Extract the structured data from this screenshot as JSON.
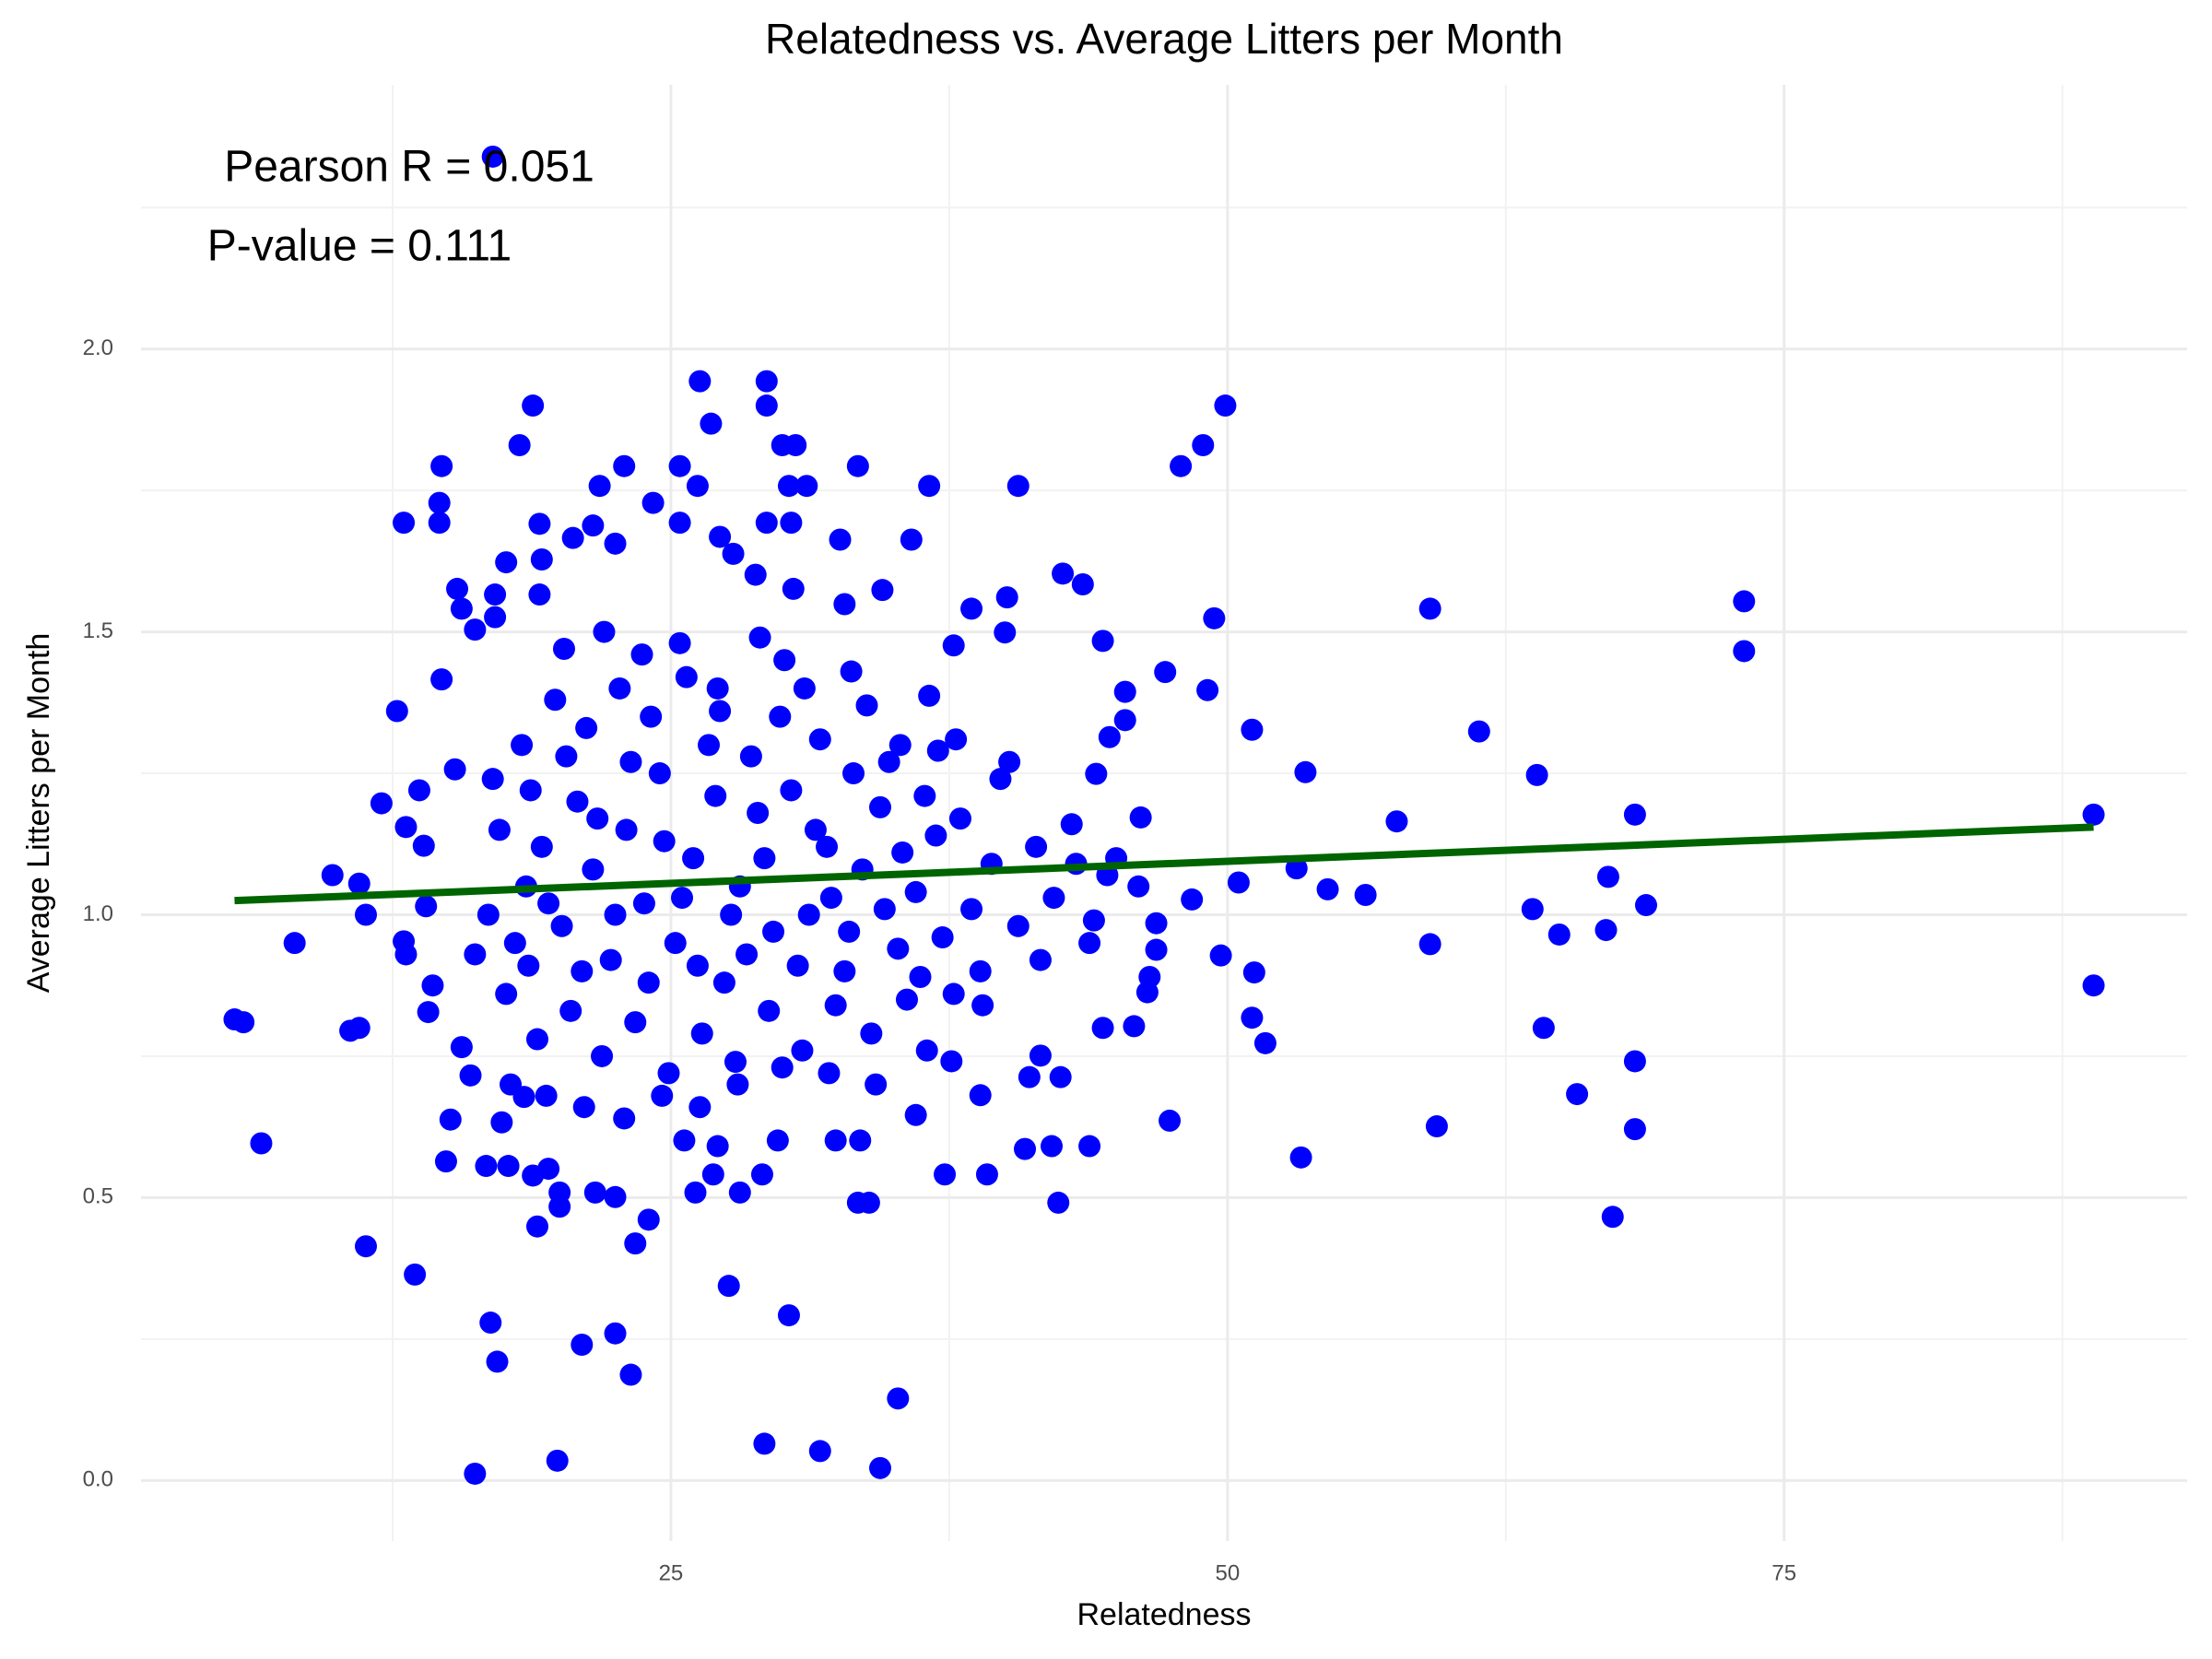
{
  "chart_data": {
    "type": "scatter",
    "title": "Relatedness vs. Average Litters per Month",
    "xlabel": "Relatedness",
    "ylabel": "Average Litters per Month",
    "annotations": [
      "Pearson R = 0.051",
      "P-value = 0.111"
    ],
    "color": "#0000ff",
    "x": [
      17.0,
      5.4,
      5.8,
      6.6,
      8.1,
      9.8,
      10.6,
      11.0,
      11.0,
      11.3,
      11.3,
      12.0,
      12.7,
      13.0,
      13.5,
      13.7,
      14.6,
      14.6,
      14.7,
      14.7,
      15.1,
      14.9,
      16.2,
      16.9,
      17.2,
      18.2,
      18.8,
      19.9,
      19.0,
      21.0,
      22.5,
      23.2,
      23.4,
      24.0,
      26.3,
      29.3,
      26.8,
      29.3,
      27.6,
      29.2,
      30.3,
      31.7,
      34.4,
      35.2,
      33.4,
      36.6,
      40.6,
      42.6,
      43.5,
      44.4,
      47.2,
      47.9,
      48.9,
      49.9,
      49.4,
      49.1,
      51.1,
      46.1,
      50.5,
      49.7,
      51.2,
      51.1,
      51.7,
      47.4,
      53.1,
      53.5,
      54.5,
      56.2,
      53.3,
      57.6,
      59.1,
      59.1,
      59.4,
      61.3,
      63.9,
      63.7,
      64.9,
      64.2,
      65.7,
      67.1,
      67.0,
      67.3,
      68.3,
      68.8,
      68.3,
      68.3,
      73.2,
      73.2,
      88.9,
      88.9,
      36.0,
      39.2,
      37.3,
      42.4,
      42.1,
      43.8,
      40.9,
      42.5,
      44.4,
      45.8,
      46.4,
      46.5,
      46.8,
      46.8,
      46.0,
      48.4,
      45.4,
      45.4,
      44.7,
      44.1,
      40.0,
      40.1,
      38.5,
      37.7,
      36.6,
      41.1,
      41.6,
      38.9,
      37.6,
      33.5,
      32.4,
      33.4,
      33.9,
      29.8,
      29.1,
      28.1,
      26.9,
      26.1,
      27.1,
      25.6,
      20.0,
      20.0,
      21.6,
      22.5,
      19.5,
      18.8,
      17.7,
      16.7,
      17.4,
      18.4,
      14.1,
      14.3,
      13.1,
      13.0,
      14.0,
      13.9,
      13.1,
      15.6,
      16.0,
      15.3,
      15.6,
      15.4,
      16.2,
      17.1,
      17.1,
      17.6,
      19.1,
      19.2,
      19.1,
      20.6,
      21.5,
      21.8,
      22.5,
      22.9,
      24.2,
      25.4,
      25.4,
      26.2,
      27.2,
      27.8,
      28.8,
      30.0,
      30.6,
      30.3,
      31.1,
      29.3,
      30.4,
      32.6,
      35.8,
      30.5,
      32.8,
      34.5,
      18.5,
      19.2,
      20.1,
      20.8,
      21.5,
      22.3,
      23.0,
      23.8,
      24.5,
      25.2,
      26.0,
      26.7,
      27.4,
      28.1,
      28.9,
      29.6,
      30.4,
      31.2,
      32.0,
      32.8,
      33.6,
      34.4,
      35.2,
      36.0,
      36.9,
      37.7,
      38.5,
      39.4,
      17.6,
      18.3,
      19.0,
      19.8,
      20.5,
      21.2,
      21.9,
      22.7,
      23.4,
      24.1,
      24.9,
      25.7,
      26.4,
      27.2,
      27.9,
      28.6,
      29.4,
      30.1,
      30.9,
      31.7,
      32.4,
      33.2,
      34.0,
      34.8,
      35.6,
      36.4,
      37.2,
      38.0,
      38.9,
      39.8,
      40.6,
      41.4,
      42.2,
      43.0,
      43.8,
      44.6,
      16.8,
      17.3,
      18.0,
      18.7,
      19.5,
      20.3,
      21.0,
      21.7,
      22.5,
      23.2,
      24.0,
      24.7,
      25.5,
      26.2,
      27.0,
      27.7,
      28.4,
      29.2,
      29.9,
      30.7,
      31.5,
      32.2,
      33.0,
      33.8,
      34.6,
      35.4,
      36.2,
      37.0,
      16.2,
      17.0,
      17.8,
      18.6,
      19.4,
      20.2,
      21.1,
      22.0,
      22.9,
      23.7,
      24.6,
      25.4,
      26.3,
      27.1,
      28.0,
      29.0,
      30.0,
      31.0,
      32.1,
      33.1,
      34.2,
      35.3,
      36.5,
      37.8,
      39.0,
      40.2,
      41.6,
      43.2,
      44.0,
      45.0
    ],
    "values": [
      2.34,
      0.815,
      0.81,
      0.596,
      0.95,
      1.07,
      0.795,
      0.8,
      1.055,
      1.0,
      0.414,
      1.197,
      1.36,
      1.693,
      0.364,
      1.22,
      1.693,
      1.728,
      1.793,
      1.416,
      0.638,
      0.564,
      0.012,
      0.279,
      0.21,
      1.83,
      1.9,
      0.035,
      0.449,
      0.24,
      0.26,
      0.187,
      0.419,
      0.461,
      1.943,
      1.943,
      1.868,
      1.9,
      0.344,
      0.065,
      0.292,
      0.052,
      0.022,
      0.145,
      1.793,
      1.758,
      1.758,
      1.603,
      1.584,
      1.484,
      1.429,
      1.793,
      1.83,
      1.9,
      1.524,
      1.397,
      1.327,
      1.172,
      1.057,
      0.928,
      0.898,
      0.818,
      0.773,
      0.636,
      1.082,
      1.252,
      1.045,
      1.035,
      0.571,
      1.165,
      1.541,
      0.948,
      0.626,
      1.324,
      1.247,
      1.01,
      0.965,
      0.8,
      0.683,
      1.067,
      0.973,
      0.466,
      1.177,
      1.017,
      0.741,
      0.621,
      1.554,
      1.466,
      1.177,
      0.875,
      0.646,
      0.541,
      0.541,
      0.491,
      0.591,
      0.591,
      0.586,
      0.713,
      0.8,
      0.803,
      0.863,
      0.89,
      0.938,
      0.985,
      1.05,
      1.027,
      1.344,
      1.394,
      1.314,
      1.249,
      1.499,
      1.561,
      1.541,
      1.476,
      1.387,
      0.713,
      0.751,
      0.681,
      0.741,
      0.601,
      0.601,
      0.491,
      0.491,
      0.601,
      0.541,
      0.509,
      0.541,
      0.509,
      0.591,
      0.601,
      0.509,
      0.484,
      0.509,
      0.501,
      0.551,
      0.539,
      0.556,
      0.556,
      0.633,
      0.678,
      0.828,
      0.875,
      0.93,
      0.953,
      1.015,
      1.122,
      1.155,
      0.766,
      0.716,
      1.257,
      1.541,
      1.576,
      1.504,
      1.566,
      1.526,
      1.623,
      1.691,
      1.628,
      1.566,
      1.666,
      1.688,
      1.758,
      1.656,
      1.793,
      1.728,
      1.693,
      1.793,
      1.758,
      1.668,
      1.638,
      1.601,
      1.83,
      1.83,
      1.758,
      1.758,
      1.693,
      1.693,
      1.663,
      1.663,
      1.576,
      1.549,
      1.574,
      1.05,
      1.12,
      0.98,
      1.2,
      1.08,
      0.92,
      1.15,
      1.02,
      1.25,
      0.95,
      1.1,
      1.3,
      0.88,
      1.05,
      1.18,
      0.97,
      1.22,
      1.0,
      1.12,
      0.9,
      1.08,
      1.19,
      0.94,
      1.04,
      1.14,
      0.86,
      1.01,
      1.09,
      0.86,
      1.3,
      0.78,
      1.38,
      0.83,
      1.33,
      0.75,
      1.4,
      0.81,
      1.35,
      0.72,
      1.42,
      0.79,
      1.36,
      0.74,
      1.28,
      0.83,
      1.45,
      0.76,
      1.31,
      0.84,
      1.25,
      0.79,
      1.27,
      0.85,
      1.21,
      0.96,
      1.17,
      0.9,
      1.24,
      0.98,
      1.12,
      1.03,
      1.16,
      0.95,
      1.07,
      1.0,
      1.15,
      0.95,
      1.22,
      1.02,
      1.28,
      0.9,
      1.17,
      1.0,
      1.27,
      0.88,
      1.13,
      1.03,
      0.91,
      1.21,
      1.0,
      0.93,
      1.1,
      1.35,
      0.91,
      1.15,
      1.03,
      0.97,
      1.37,
      1.01,
      1.11,
      0.89,
      1.29,
      0.93,
      1.24,
      0.7,
      0.91,
      0.68,
      1.47,
      0.66,
      1.5,
      0.64,
      1.46,
      0.68,
      1.48,
      0.66,
      1.4,
      0.7,
      1.49,
      0.73,
      1.4,
      0.72,
      1.43,
      0.7,
      1.3,
      0.76,
      1.31,
      0.84,
      1.27,
      0.92,
      1.09,
      0.99,
      1.1
    ],
    "trend_line": {
      "x": [
        5.4,
        88.9
      ],
      "values": [
        1.025,
        1.155
      ],
      "color": "#006400"
    },
    "xlim": [
      1.2,
      93.1
    ],
    "ylim": [
      -0.107,
      2.467
    ],
    "xticks": [
      25,
      50,
      75
    ],
    "yticks": [
      {
        "value": 0,
        "label": "0.0"
      },
      0.5,
      {
        "value": 1,
        "label": "1.0"
      },
      1.5,
      {
        "value": 2,
        "label": "2.0"
      }
    ],
    "grid": true
  }
}
